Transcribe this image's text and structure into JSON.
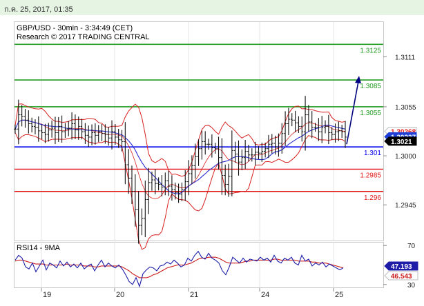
{
  "header": {
    "timestamp": "ก.ค. 25, 2017, 01:35"
  },
  "chart_data": [
    {
      "type": "candlestick",
      "title": "GBP/USD - 30min - 3:34:49 (CET)",
      "subtitle": "Research © 2017 TRADING CENTRAL",
      "ylim": [
        1.2905,
        1.315
      ],
      "y_ticks": [
        {
          "value": 1.3111,
          "label": "1.3111"
        },
        {
          "value": 1.3055,
          "label": "1.3055"
        },
        {
          "value": 1.3,
          "label": "1.3000"
        },
        {
          "value": 1.2945,
          "label": "1.2945"
        }
      ],
      "x_ticks": [
        "19",
        "20",
        "21",
        "24",
        "25"
      ],
      "levels": [
        {
          "value": 1.3125,
          "label": "1.3125",
          "color": "#1f9b1f"
        },
        {
          "value": 1.3085,
          "label": "1.3085",
          "color": "#1f9b1f"
        },
        {
          "value": 1.3055,
          "label": "1.3055",
          "color": "#1f9b1f"
        },
        {
          "value": 1.301,
          "label": "1.301",
          "color": "#0000ee"
        },
        {
          "value": 1.2985,
          "label": "1.2985",
          "color": "#e31a1a"
        },
        {
          "value": 1.296,
          "label": "1.296",
          "color": "#e31a1a"
        }
      ],
      "price_tags": [
        {
          "value": 1.3026,
          "label": "1.30268",
          "bg": "#ffffff",
          "color": "#e31a1a"
        },
        {
          "value": 1.3023,
          "label": "1.30227",
          "bg": "#1f3fd6",
          "color": "#ffffff"
        },
        {
          "value": 1.3021,
          "label": "1.3021",
          "bg": "#000000",
          "color": "#ffffff"
        }
      ],
      "forecast_arrow": {
        "from": 1.3013,
        "to": 1.3085,
        "color": "#000080"
      },
      "close_series": [
        1.303,
        1.3046,
        1.3044,
        1.304,
        1.3036,
        1.3033,
        1.3032,
        1.3028,
        1.3026,
        1.3024,
        1.3029,
        1.3031,
        1.3026,
        1.3033,
        1.3027,
        1.303,
        1.3031,
        1.3036,
        1.3029,
        1.3033,
        1.3027,
        1.3023,
        1.3021,
        1.3026,
        1.3023,
        1.3027,
        1.3025,
        1.3024,
        1.302,
        1.3027,
        1.3021,
        1.3018,
        1.3016,
        1.299,
        1.2975,
        1.296,
        1.294,
        1.2922,
        1.293,
        1.2951,
        1.297,
        1.2973,
        1.2969,
        1.2968,
        1.2965,
        1.2972,
        1.2966,
        1.2962,
        1.2959,
        1.2957,
        1.2962,
        1.2971,
        1.298,
        1.2989,
        1.2999,
        1.3008,
        1.3016,
        1.3013,
        1.3013,
        1.3009,
        1.3008,
        1.2998,
        1.2978,
        1.2968,
        1.2977,
        1.3006,
        1.3002,
        1.2993,
        1.2998,
        1.3005,
        1.3001,
        1.3001,
        1.3004,
        1.3003,
        1.3005,
        1.3008,
        1.3013,
        1.3014,
        1.301,
        1.3014,
        1.3025,
        1.3036,
        1.3041,
        1.304,
        1.3037,
        1.3033,
        1.3027,
        1.3046,
        1.3038,
        1.3032,
        1.3032,
        1.3027,
        1.3032,
        1.3033,
        1.3026,
        1.3024,
        1.3027,
        1.3028,
        1.3027,
        1.3021
      ]
    },
    {
      "type": "line",
      "title": "RSI14 - 9MA",
      "ylim": [
        27,
        73
      ],
      "y_ticks": [
        {
          "value": 70,
          "label": "70"
        },
        {
          "value": 30,
          "label": "30"
        }
      ],
      "series": [
        {
          "name": "RSI14",
          "color": "#1c1ca8",
          "last_label": "47.193"
        },
        {
          "name": "9MA",
          "color": "#cc1a1a",
          "last_label": "46.543"
        }
      ],
      "rsi_values": [
        55,
        60,
        57,
        48,
        46,
        52,
        43,
        49,
        55,
        45,
        52,
        50,
        47,
        54,
        49,
        53,
        48,
        51,
        47,
        52,
        46,
        49,
        51,
        44,
        50,
        55,
        48,
        52,
        49,
        47,
        50,
        46,
        40,
        33,
        30,
        37,
        28,
        41,
        45,
        48,
        47,
        44,
        49,
        50,
        53,
        51,
        55,
        52,
        48,
        50,
        57,
        54,
        60,
        64,
        58,
        56,
        62,
        57,
        55,
        52,
        44,
        40,
        48,
        58,
        55,
        52,
        57,
        53,
        56,
        55,
        54,
        58,
        55,
        57,
        53,
        60,
        54,
        52,
        57,
        55,
        58,
        52,
        50,
        60,
        54,
        56,
        49,
        52,
        50,
        53,
        48,
        51,
        49,
        47,
        45,
        47
      ],
      "ma_values": [
        54,
        55,
        55,
        54,
        53,
        52,
        51,
        51,
        51,
        50,
        50,
        50,
        50,
        50,
        50,
        51,
        50,
        50,
        50,
        50,
        49,
        49,
        49,
        48,
        48,
        49,
        49,
        49,
        49,
        49,
        49,
        48,
        46,
        44,
        41,
        39,
        37,
        37,
        37,
        38,
        40,
        41,
        43,
        45,
        47,
        48,
        49,
        50,
        50,
        50,
        51,
        52,
        54,
        56,
        57,
        57,
        58,
        58,
        58,
        57,
        55,
        53,
        52,
        52,
        52,
        52,
        53,
        54,
        54,
        55,
        55,
        55,
        55,
        55,
        55,
        56,
        56,
        55,
        55,
        55,
        55,
        55,
        54,
        54,
        54,
        54,
        53,
        53,
        52,
        52,
        52,
        51,
        50,
        49,
        48,
        47
      ]
    }
  ]
}
